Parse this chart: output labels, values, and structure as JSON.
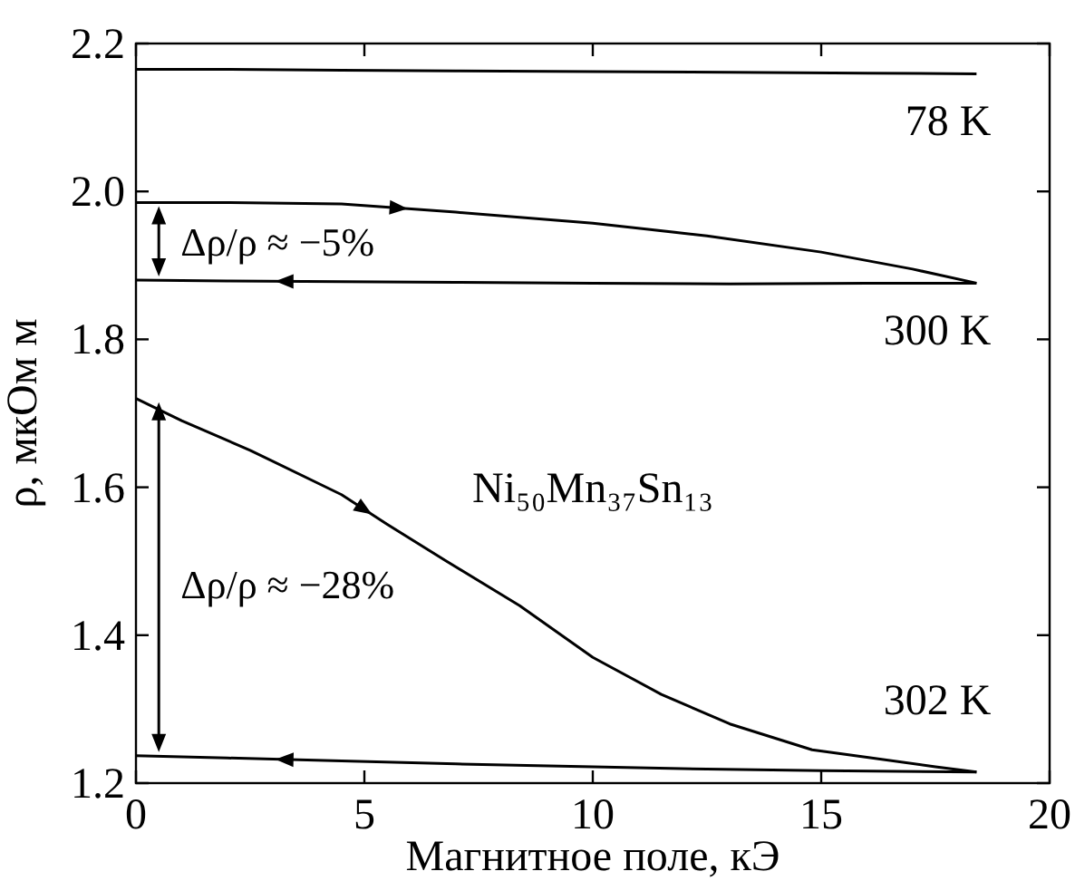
{
  "chart_data": {
    "type": "line",
    "xlabel": "Магнитное поле, кЭ",
    "ylabel": "ρ, мкОм м",
    "annotations": [
      "Δρ/ρ ≈ −5%",
      "Δρ/ρ ≈ −28%",
      "Ni₅₀Mn₃₇Sn₁₃"
    ],
    "xlim": [
      0,
      20
    ],
    "xticks": [
      0,
      5,
      10,
      15,
      20
    ],
    "ylim": [
      1.2,
      2.2
    ],
    "yticks": [
      {
        "value": 1.2,
        "label": "1.2"
      },
      {
        "value": 1.4,
        "label": "1.4"
      },
      {
        "value": 1.6,
        "label": "1.6"
      },
      {
        "value": 1.8,
        "label": "1.8"
      },
      {
        "value": 2,
        "label": "2.0"
      },
      {
        "value": 2.2,
        "label": "2.2"
      }
    ],
    "grid": false,
    "legend": "right",
    "marker": "none",
    "line_style": "solid",
    "series": [
      {
        "name": "78 K",
        "color": "#000000",
        "x": [
          0,
          2,
          4.5,
          7,
          10,
          13,
          16,
          18.4
        ],
        "values": [
          2.165,
          2.165,
          2.164,
          2.163,
          2.162,
          2.161,
          2.16,
          2.159
        ]
      },
      {
        "color": "#000000",
        "x": [
          0,
          2,
          4.5,
          7,
          10,
          12.5,
          15,
          17,
          18.4
        ],
        "values": [
          1.985,
          1.985,
          1.983,
          1.972,
          1.957,
          1.94,
          1.918,
          1.895,
          1.876
        ]
      },
      {
        "name": "300 K",
        "color": "#000000",
        "x": [
          18.4,
          16,
          13,
          10,
          7,
          4.5,
          2,
          0
        ],
        "values": [
          1.876,
          1.876,
          1.875,
          1.876,
          1.877,
          1.878,
          1.879,
          1.88
        ]
      },
      {
        "name": "302 K",
        "color": "#000000",
        "x": [
          0,
          1,
          2.5,
          4.5,
          5.5,
          6.8,
          8.4,
          10,
          11.5,
          13,
          14.8,
          16,
          17.5,
          18.4
        ],
        "values": [
          1.72,
          1.69,
          1.65,
          1.59,
          1.55,
          1.5,
          1.44,
          1.37,
          1.32,
          1.28,
          1.245,
          1.235,
          1.222,
          1.215
        ]
      },
      {
        "color": "#000000",
        "x": [
          18.4,
          15,
          12.5,
          10,
          7,
          4.5,
          2,
          0
        ],
        "values": [
          1.215,
          1.217,
          1.219,
          1.222,
          1.226,
          1.23,
          1.234,
          1.237
        ]
      }
    ]
  }
}
